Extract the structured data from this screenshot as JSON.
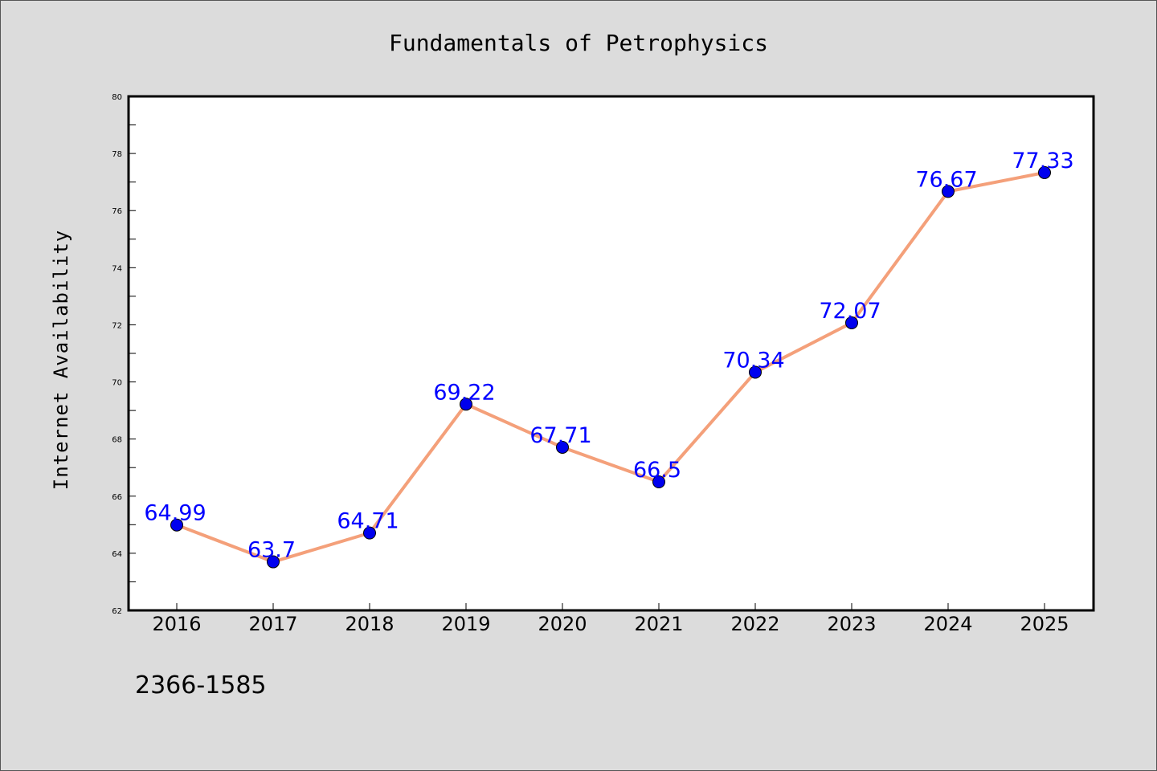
{
  "chart_data": {
    "type": "line",
    "title": "Fundamentals of Petrophysics",
    "ylabel": "Internet Availability",
    "xlabel": "",
    "categories": [
      "2016",
      "2017",
      "2018",
      "2019",
      "2020",
      "2021",
      "2022",
      "2023",
      "2024",
      "2025"
    ],
    "values": [
      64.99,
      63.7,
      64.71,
      69.22,
      67.71,
      66.5,
      70.34,
      72.07,
      76.67,
      77.33
    ],
    "data_labels": [
      "64.99",
      "63.7",
      "64.71",
      "69.22",
      "67.71",
      "66.5",
      "70.34",
      "72.07",
      "76.67",
      "77.33"
    ],
    "ylim": [
      62,
      80
    ],
    "yticks": [
      "62",
      "64",
      "66",
      "68",
      "70",
      "72",
      "74",
      "76",
      "78",
      "80"
    ],
    "annotation": "2366-1585",
    "grid": false,
    "colors": {
      "line": "#f4a07a",
      "marker": "#0000ee",
      "label": "#0000ff",
      "background": "#dcdcdc",
      "plot_bg": "#ffffff"
    }
  }
}
